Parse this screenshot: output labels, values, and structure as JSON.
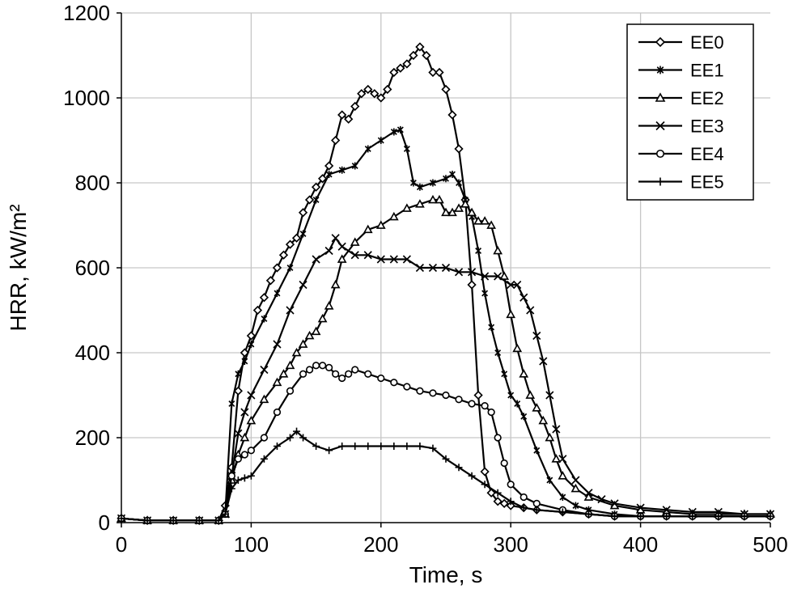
{
  "chart_data": {
    "type": "line",
    "xlabel": "Time, s",
    "ylabel": "HRR, kW/m²",
    "xlim": [
      0,
      500
    ],
    "ylim": [
      0,
      1200
    ],
    "xticks": [
      "0",
      "100",
      "200",
      "300",
      "400",
      "500"
    ],
    "yticks": [
      "0",
      "200",
      "400",
      "600",
      "800",
      "1000",
      "1200"
    ],
    "grid": true,
    "legend_position": "top-right",
    "series": [
      {
        "name": "EE0",
        "marker": "diamond",
        "x": [
          0,
          20,
          40,
          60,
          75,
          80,
          85,
          90,
          95,
          100,
          105,
          110,
          115,
          120,
          125,
          130,
          135,
          140,
          145,
          150,
          155,
          160,
          165,
          170,
          175,
          180,
          185,
          190,
          195,
          200,
          205,
          210,
          215,
          220,
          225,
          230,
          235,
          240,
          245,
          250,
          255,
          260,
          265,
          270,
          275,
          280,
          285,
          290,
          295,
          300,
          310,
          320,
          340,
          360,
          380,
          400,
          420,
          440,
          460,
          480,
          500
        ],
        "y": [
          10,
          5,
          5,
          5,
          5,
          40,
          130,
          310,
          400,
          440,
          500,
          530,
          570,
          600,
          630,
          655,
          670,
          730,
          760,
          790,
          810,
          840,
          900,
          960,
          950,
          980,
          1010,
          1020,
          1010,
          1000,
          1020,
          1060,
          1070,
          1080,
          1100,
          1120,
          1100,
          1060,
          1060,
          1020,
          960,
          880,
          760,
          560,
          300,
          120,
          70,
          50,
          45,
          40,
          35,
          30,
          25,
          20,
          15,
          15,
          15,
          15,
          15,
          15,
          15
        ]
      },
      {
        "name": "EE1",
        "marker": "asterisk",
        "x": [
          0,
          20,
          40,
          60,
          75,
          80,
          85,
          90,
          95,
          100,
          110,
          120,
          130,
          140,
          150,
          160,
          170,
          180,
          190,
          200,
          210,
          215,
          220,
          225,
          230,
          240,
          250,
          255,
          260,
          265,
          270,
          275,
          280,
          285,
          290,
          295,
          300,
          305,
          310,
          320,
          330,
          340,
          350,
          360,
          380,
          400,
          420,
          440,
          460,
          480,
          500
        ],
        "y": [
          10,
          5,
          5,
          5,
          5,
          20,
          280,
          350,
          380,
          420,
          480,
          540,
          600,
          680,
          760,
          820,
          830,
          840,
          880,
          900,
          920,
          925,
          880,
          800,
          790,
          800,
          810,
          820,
          800,
          760,
          720,
          640,
          540,
          460,
          400,
          350,
          300,
          280,
          250,
          170,
          100,
          60,
          40,
          30,
          20,
          15,
          15,
          15,
          15,
          15,
          15
        ]
      },
      {
        "name": "EE2",
        "marker": "triangle",
        "x": [
          0,
          20,
          40,
          60,
          75,
          80,
          85,
          90,
          95,
          100,
          110,
          120,
          125,
          130,
          135,
          140,
          145,
          150,
          155,
          160,
          165,
          170,
          180,
          190,
          200,
          210,
          220,
          230,
          240,
          245,
          250,
          255,
          260,
          265,
          270,
          275,
          280,
          285,
          290,
          295,
          300,
          305,
          310,
          315,
          320,
          325,
          330,
          335,
          340,
          350,
          360,
          380,
          400,
          420,
          440,
          460,
          480,
          500
        ],
        "y": [
          10,
          5,
          5,
          5,
          5,
          20,
          100,
          160,
          200,
          240,
          290,
          330,
          350,
          370,
          400,
          420,
          440,
          450,
          480,
          510,
          560,
          620,
          660,
          690,
          700,
          720,
          740,
          750,
          760,
          760,
          730,
          730,
          740,
          750,
          730,
          710,
          710,
          700,
          640,
          580,
          490,
          410,
          350,
          300,
          270,
          240,
          200,
          150,
          110,
          80,
          60,
          40,
          30,
          25,
          20,
          20,
          20,
          20
        ]
      },
      {
        "name": "EE3",
        "marker": "x",
        "x": [
          0,
          20,
          40,
          60,
          75,
          80,
          85,
          90,
          95,
          100,
          110,
          120,
          130,
          140,
          150,
          160,
          165,
          170,
          180,
          190,
          200,
          210,
          220,
          230,
          240,
          250,
          260,
          270,
          280,
          290,
          300,
          305,
          310,
          315,
          320,
          325,
          330,
          335,
          340,
          350,
          360,
          370,
          380,
          400,
          420,
          440,
          460,
          480,
          500
        ],
        "y": [
          10,
          5,
          5,
          5,
          5,
          20,
          110,
          210,
          260,
          300,
          360,
          420,
          500,
          560,
          620,
          640,
          670,
          650,
          630,
          630,
          620,
          620,
          620,
          600,
          600,
          600,
          590,
          590,
          580,
          580,
          560,
          560,
          530,
          500,
          440,
          380,
          300,
          220,
          150,
          100,
          70,
          55,
          45,
          35,
          30,
          25,
          25,
          20,
          20
        ]
      },
      {
        "name": "EE4",
        "marker": "circle",
        "x": [
          0,
          20,
          40,
          60,
          75,
          80,
          85,
          90,
          95,
          100,
          110,
          120,
          130,
          140,
          145,
          150,
          155,
          160,
          165,
          170,
          175,
          180,
          190,
          200,
          210,
          220,
          230,
          240,
          250,
          260,
          270,
          280,
          285,
          290,
          295,
          300,
          310,
          320,
          340,
          360,
          380,
          400,
          420,
          440,
          460,
          480,
          500
        ],
        "y": [
          10,
          5,
          5,
          5,
          5,
          20,
          110,
          150,
          160,
          170,
          200,
          260,
          310,
          350,
          360,
          370,
          370,
          365,
          350,
          340,
          350,
          360,
          350,
          340,
          330,
          320,
          310,
          305,
          300,
          290,
          280,
          275,
          260,
          200,
          140,
          90,
          60,
          45,
          30,
          20,
          15,
          15,
          15,
          15,
          15,
          15,
          15
        ]
      },
      {
        "name": "EE5",
        "marker": "plus",
        "x": [
          0,
          20,
          40,
          60,
          75,
          80,
          85,
          90,
          95,
          100,
          110,
          120,
          130,
          135,
          140,
          150,
          160,
          170,
          180,
          190,
          200,
          210,
          220,
          230,
          240,
          250,
          260,
          270,
          280,
          290,
          300,
          310,
          320,
          340,
          360,
          380,
          400,
          420,
          440,
          460,
          480,
          500
        ],
        "y": [
          10,
          5,
          5,
          5,
          5,
          20,
          80,
          100,
          105,
          110,
          150,
          180,
          200,
          215,
          200,
          180,
          170,
          180,
          180,
          180,
          180,
          180,
          180,
          180,
          175,
          150,
          130,
          110,
          90,
          70,
          50,
          35,
          30,
          25,
          20,
          15,
          15,
          15,
          15,
          15,
          15,
          15
        ]
      }
    ]
  }
}
